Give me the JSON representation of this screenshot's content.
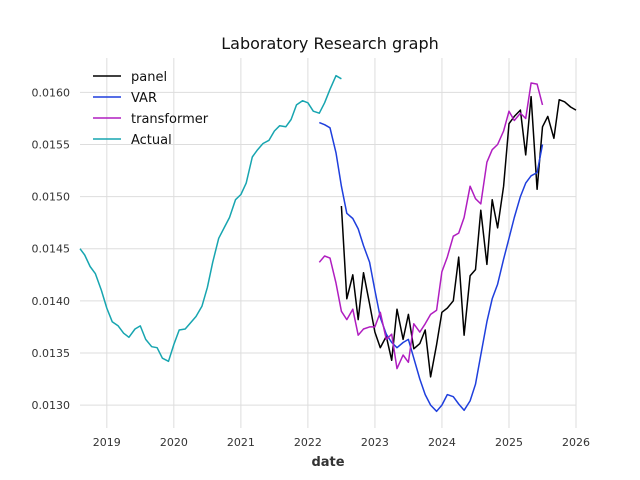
{
  "chart_data": {
    "type": "line",
    "title": "Laboratory Research graph",
    "xlabel": "date",
    "ylabel": "",
    "xlim": [
      2018.6,
      2026.0
    ],
    "ylim": [
      0.01278,
      0.01633
    ],
    "x_ticks": [
      2019,
      2020,
      2021,
      2022,
      2023,
      2024,
      2025,
      2026
    ],
    "x_tick_labels": [
      "2019",
      "2020",
      "2021",
      "2022",
      "2023",
      "2024",
      "2025",
      "2026"
    ],
    "y_ticks": [
      0.013,
      0.0135,
      0.014,
      0.0145,
      0.015,
      0.0155,
      0.016
    ],
    "y_tick_labels": [
      "0.0130",
      "0.0135",
      "0.0140",
      "0.0145",
      "0.0150",
      "0.0155",
      "0.0160"
    ],
    "grid": true,
    "legend_position": "top-left",
    "series": [
      {
        "name": "panel",
        "color": "#000000",
        "x": [
          2022.5,
          2022.58,
          2022.67,
          2022.75,
          2022.83,
          2022.92,
          2023.0,
          2023.08,
          2023.17,
          2023.25,
          2023.33,
          2023.42,
          2023.5,
          2023.58,
          2023.67,
          2023.75,
          2023.83,
          2023.92,
          2024.0,
          2024.08,
          2024.17,
          2024.25,
          2024.33,
          2024.42,
          2024.5,
          2024.58,
          2024.67,
          2024.75,
          2024.83,
          2024.92,
          2025.0,
          2025.08,
          2025.17,
          2025.25,
          2025.33,
          2025.42,
          2025.5,
          2025.58,
          2025.67,
          2025.75,
          2025.83,
          2025.92,
          2026.0
        ],
        "y": [
          0.01491,
          0.01402,
          0.01425,
          0.01382,
          0.01427,
          0.01397,
          0.0137,
          0.01355,
          0.01366,
          0.01343,
          0.01392,
          0.01363,
          0.01387,
          0.01354,
          0.01359,
          0.01372,
          0.01327,
          0.01358,
          0.01389,
          0.01393,
          0.014,
          0.01442,
          0.01367,
          0.01424,
          0.0143,
          0.01487,
          0.01435,
          0.01497,
          0.0147,
          0.0151,
          0.0157,
          0.01577,
          0.01583,
          0.0154,
          0.01596,
          0.01507,
          0.01567,
          0.01577,
          0.01556,
          0.01593,
          0.01591,
          0.01586,
          0.01583
        ]
      },
      {
        "name": "VAR",
        "color": "#1f3fdd",
        "x": [
          2022.17,
          2022.25,
          2022.33,
          2022.42,
          2022.5,
          2022.58,
          2022.67,
          2022.75,
          2022.83,
          2022.92,
          2023.0,
          2023.08,
          2023.17,
          2023.25,
          2023.33,
          2023.42,
          2023.5,
          2023.58,
          2023.67,
          2023.75,
          2023.83,
          2023.92,
          2024.0,
          2024.08,
          2024.17,
          2024.25,
          2024.33,
          2024.42,
          2024.5,
          2024.58,
          2024.67,
          2024.75,
          2024.83,
          2024.92,
          2025.0,
          2025.08,
          2025.17,
          2025.25,
          2025.33,
          2025.42,
          2025.5
        ],
        "y": [
          0.01571,
          0.01569,
          0.01566,
          0.01542,
          0.0151,
          0.01484,
          0.01479,
          0.01469,
          0.01453,
          0.01437,
          0.0141,
          0.01384,
          0.01368,
          0.0136,
          0.01355,
          0.0136,
          0.01363,
          0.01345,
          0.01325,
          0.0131,
          0.013,
          0.01294,
          0.013,
          0.0131,
          0.01308,
          0.01301,
          0.01295,
          0.01304,
          0.0132,
          0.01348,
          0.0138,
          0.01402,
          0.01416,
          0.0144,
          0.0146,
          0.0148,
          0.015,
          0.01513,
          0.0152,
          0.01523,
          0.0155
        ]
      },
      {
        "name": "transformer",
        "color": "#b01ec0",
        "x": [
          2022.17,
          2022.25,
          2022.33,
          2022.42,
          2022.5,
          2022.58,
          2022.67,
          2022.75,
          2022.83,
          2022.92,
          2023.0,
          2023.08,
          2023.17,
          2023.25,
          2023.33,
          2023.42,
          2023.5,
          2023.58,
          2023.67,
          2023.75,
          2023.83,
          2023.92,
          2024.0,
          2024.08,
          2024.17,
          2024.25,
          2024.33,
          2024.42,
          2024.5,
          2024.58,
          2024.67,
          2024.75,
          2024.83,
          2024.92,
          2025.0,
          2025.08,
          2025.17,
          2025.25,
          2025.33,
          2025.42,
          2025.5
        ],
        "y": [
          0.01437,
          0.01443,
          0.01441,
          0.01417,
          0.0139,
          0.01382,
          0.01392,
          0.01367,
          0.01373,
          0.01375,
          0.01375,
          0.01389,
          0.01363,
          0.01368,
          0.01335,
          0.01348,
          0.01341,
          0.01378,
          0.0137,
          0.01378,
          0.01387,
          0.01391,
          0.01428,
          0.01442,
          0.01462,
          0.01465,
          0.0148,
          0.0151,
          0.01498,
          0.01493,
          0.01533,
          0.01545,
          0.0155,
          0.01563,
          0.01582,
          0.01573,
          0.0158,
          0.01575,
          0.01609,
          0.01608,
          0.01588
        ]
      },
      {
        "name": "Actual",
        "color": "#17a5b0",
        "x": [
          2018.6,
          2018.67,
          2018.75,
          2018.83,
          2018.92,
          2019.0,
          2019.08,
          2019.17,
          2019.25,
          2019.33,
          2019.42,
          2019.5,
          2019.58,
          2019.67,
          2019.75,
          2019.83,
          2019.92,
          2020.0,
          2020.08,
          2020.17,
          2020.25,
          2020.33,
          2020.42,
          2020.5,
          2020.58,
          2020.67,
          2020.75,
          2020.83,
          2020.92,
          2021.0,
          2021.08,
          2021.17,
          2021.25,
          2021.33,
          2021.42,
          2021.5,
          2021.58,
          2021.67,
          2021.75,
          2021.83,
          2021.92,
          2022.0,
          2022.08,
          2022.17,
          2022.25,
          2022.33,
          2022.42,
          2022.5
        ],
        "y": [
          0.0145,
          0.01444,
          0.01433,
          0.01426,
          0.0141,
          0.01393,
          0.0138,
          0.01376,
          0.01369,
          0.01365,
          0.01373,
          0.01376,
          0.01363,
          0.01356,
          0.01355,
          0.01345,
          0.01342,
          0.01358,
          0.01372,
          0.01373,
          0.01379,
          0.01385,
          0.01395,
          0.01413,
          0.01437,
          0.0146,
          0.0147,
          0.0148,
          0.01497,
          0.01502,
          0.01513,
          0.01538,
          0.01545,
          0.01551,
          0.01554,
          0.01563,
          0.01568,
          0.01567,
          0.01574,
          0.01588,
          0.01592,
          0.0159,
          0.01582,
          0.0158,
          0.0159,
          0.01603,
          0.01616,
          0.01613
        ]
      }
    ]
  }
}
